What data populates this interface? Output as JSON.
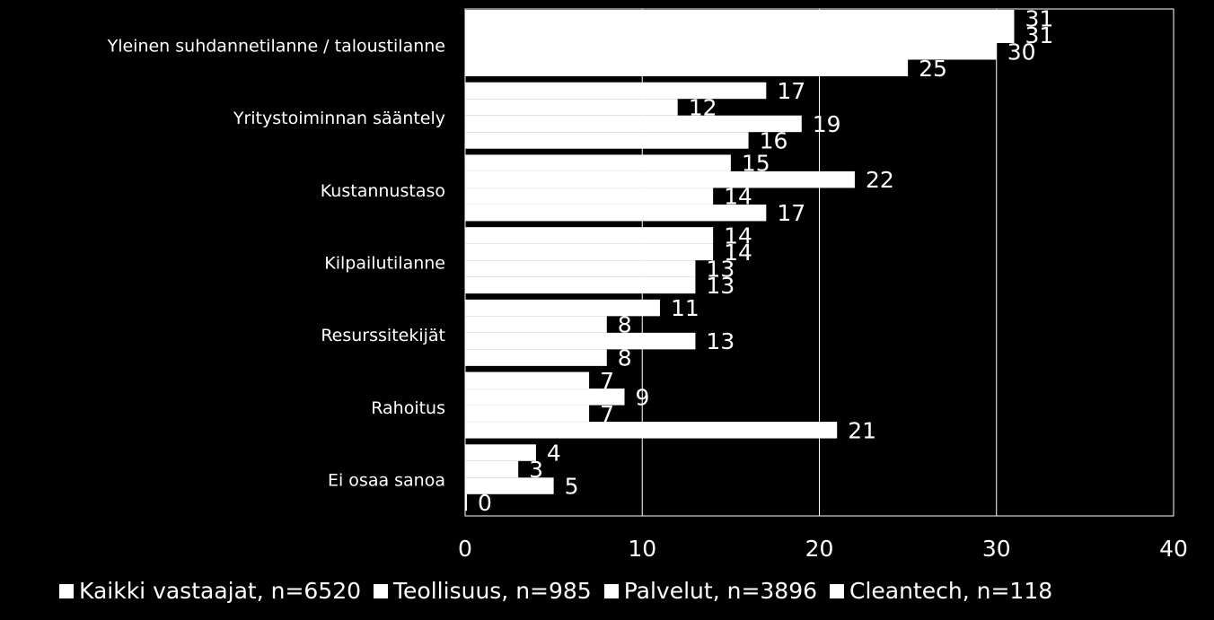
{
  "chart_data": {
    "type": "bar",
    "orientation": "horizontal",
    "categories": [
      "Yleinen suhdannetilanne / taloustilanne",
      "Yritystoiminnan sääntely",
      "Kustannustaso",
      "Kilpailutilanne",
      "Resurssitekijät",
      "Rahoitus",
      "Ei osaa sanoa"
    ],
    "series": [
      {
        "name": "Kaikki vastaajat, n=6520",
        "values": [
          31,
          17,
          15,
          14,
          11,
          7,
          4
        ]
      },
      {
        "name": "Teollisuus, n=985",
        "values": [
          31,
          12,
          22,
          14,
          8,
          9,
          3
        ]
      },
      {
        "name": "Palvelut, n=3896",
        "values": [
          30,
          19,
          14,
          13,
          13,
          7,
          5
        ]
      },
      {
        "name": "Cleantech, n=118",
        "values": [
          25,
          16,
          17,
          13,
          8,
          21,
          0
        ]
      }
    ],
    "xlim": [
      0,
      40
    ],
    "xticks": [
      0,
      10,
      20,
      30,
      40
    ],
    "grid": true,
    "legend_position": "bottom",
    "colors": {
      "background": "#000000",
      "bar": "#ffffff",
      "text": "#ffffff",
      "grid": "#ffffff"
    }
  }
}
